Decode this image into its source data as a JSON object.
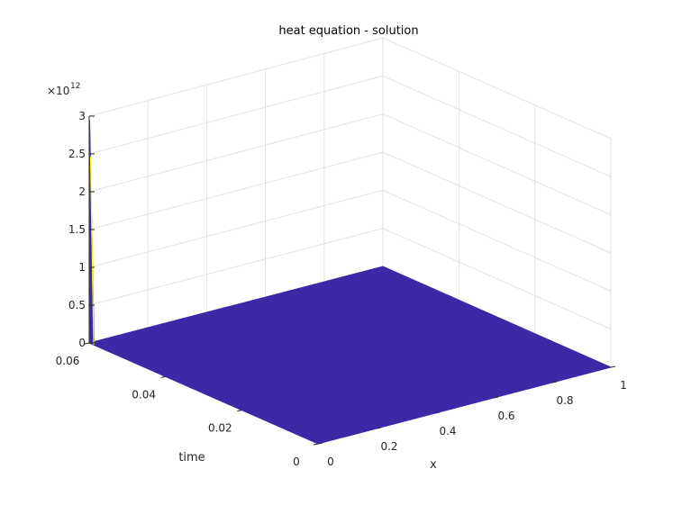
{
  "chart_data": {
    "type": "surface",
    "title": "heat equation - solution",
    "xlabel": "x",
    "ylabel": "time",
    "zlabel": "",
    "x_ticks": [
      "0",
      "0.2",
      "0.4",
      "0.6",
      "0.8",
      "1"
    ],
    "y_ticks": [
      "0",
      "0.02",
      "0.04",
      "0.06"
    ],
    "z_ticks": [
      "0",
      "0.5",
      "1",
      "1.5",
      "2",
      "2.5",
      "3"
    ],
    "z_exponent_base": "×10",
    "z_exponent_power": "12",
    "xlim": [
      0,
      1
    ],
    "ylim": [
      0,
      0.06
    ],
    "zlim": [
      0,
      3
    ],
    "grid": true,
    "surface_color": "#3b29a6",
    "spike_color": "#ffff00",
    "spike": {
      "x": 0,
      "time": 0.06,
      "value_e12": 3
    },
    "surface_value": 0
  }
}
